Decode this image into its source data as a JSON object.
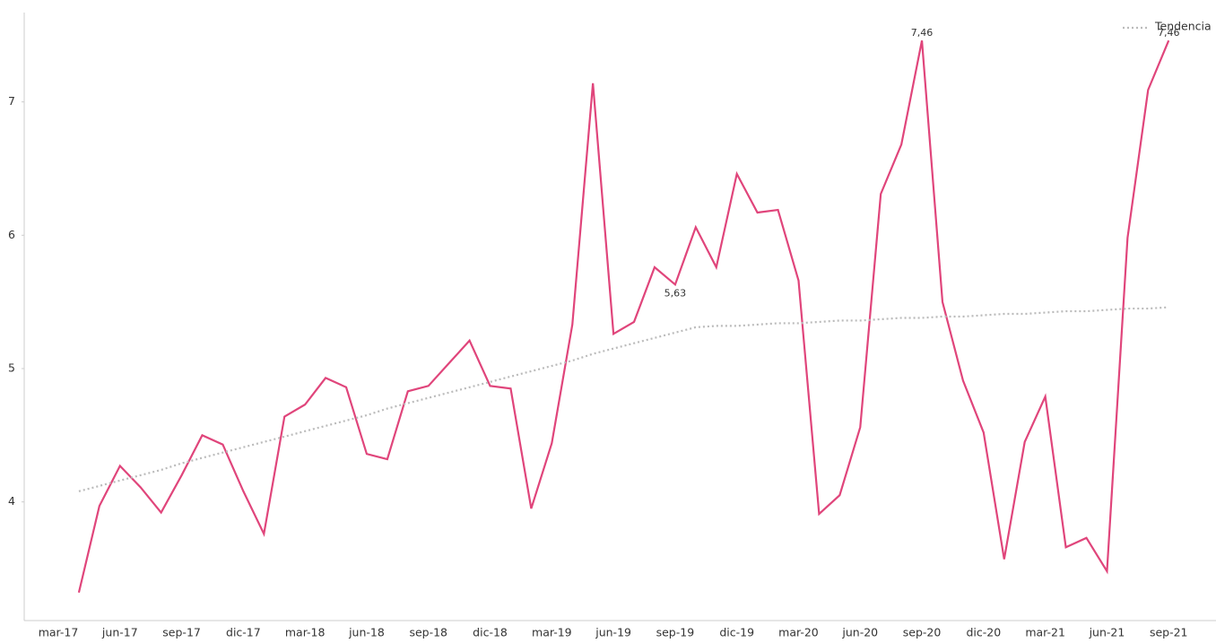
{
  "chart_data": {
    "type": "line",
    "categories": [
      "mar-17",
      null,
      null,
      "jun-17",
      null,
      null,
      "sep-17",
      null,
      null,
      "dic-17",
      null,
      null,
      "mar-18",
      null,
      null,
      "jun-18",
      null,
      null,
      "sep-18",
      null,
      null,
      "dic-18",
      null,
      null,
      "mar-19",
      null,
      null,
      "jun-19",
      null,
      null,
      "sep-19",
      null,
      null,
      "dic-19",
      null,
      null,
      "mar-20",
      null,
      null,
      "jun-20",
      null,
      null,
      "sep-20",
      null,
      null,
      "dic-20",
      null,
      null,
      "mar-21",
      null,
      null,
      "jun-21",
      null,
      null,
      "sep-21"
    ],
    "series": [
      {
        "color": "#e0457b",
        "values": [
          null,
          3.32,
          3.97,
          4.27,
          4.11,
          3.92,
          4.2,
          4.5,
          4.43,
          4.08,
          3.76,
          4.64,
          4.73,
          4.93,
          4.86,
          4.36,
          4.32,
          4.83,
          4.87,
          5.04,
          5.21,
          4.87,
          4.85,
          3.95,
          4.44,
          5.33,
          7.14,
          5.26,
          5.35,
          5.76,
          5.63,
          6.06,
          5.76,
          6.46,
          6.17,
          6.19,
          5.66,
          3.91,
          4.05,
          4.56,
          6.31,
          6.68,
          7.46,
          5.5,
          4.91,
          4.52,
          3.57,
          4.45,
          4.79,
          3.66,
          3.73,
          3.48,
          5.98,
          7.09,
          7.46
        ],
        "value_labels": [
          null,
          null,
          null,
          null,
          null,
          null,
          null,
          null,
          null,
          null,
          null,
          null,
          null,
          null,
          null,
          null,
          null,
          null,
          null,
          null,
          null,
          null,
          null,
          null,
          null,
          null,
          null,
          null,
          null,
          null,
          "5,63",
          null,
          null,
          null,
          null,
          null,
          null,
          null,
          null,
          null,
          null,
          null,
          "7,46",
          null,
          null,
          null,
          null,
          null,
          null,
          null,
          null,
          null,
          null,
          null,
          "7,46"
        ]
      },
      {
        "name": "Tendencia",
        "color": "#bbbbbb",
        "dashed": true,
        "values": [
          null,
          4.08,
          4.12,
          4.16,
          4.2,
          4.24,
          4.29,
          4.33,
          4.37,
          4.41,
          4.45,
          4.49,
          4.53,
          4.57,
          4.61,
          4.65,
          4.7,
          4.74,
          4.78,
          4.82,
          4.86,
          4.9,
          4.94,
          4.98,
          5.02,
          5.06,
          5.11,
          5.15,
          5.19,
          5.23,
          5.27,
          5.31,
          5.32,
          5.32,
          5.33,
          5.34,
          5.34,
          5.35,
          5.36,
          5.36,
          5.37,
          5.38,
          5.38,
          5.39,
          5.39,
          5.4,
          5.41,
          5.41,
          5.42,
          5.43,
          5.43,
          5.44,
          5.45,
          5.45,
          5.46
        ]
      }
    ],
    "ylim": [
      3.11,
      7.67
    ],
    "yticks": [
      4,
      5,
      6,
      7
    ],
    "legend": "upper right"
  }
}
